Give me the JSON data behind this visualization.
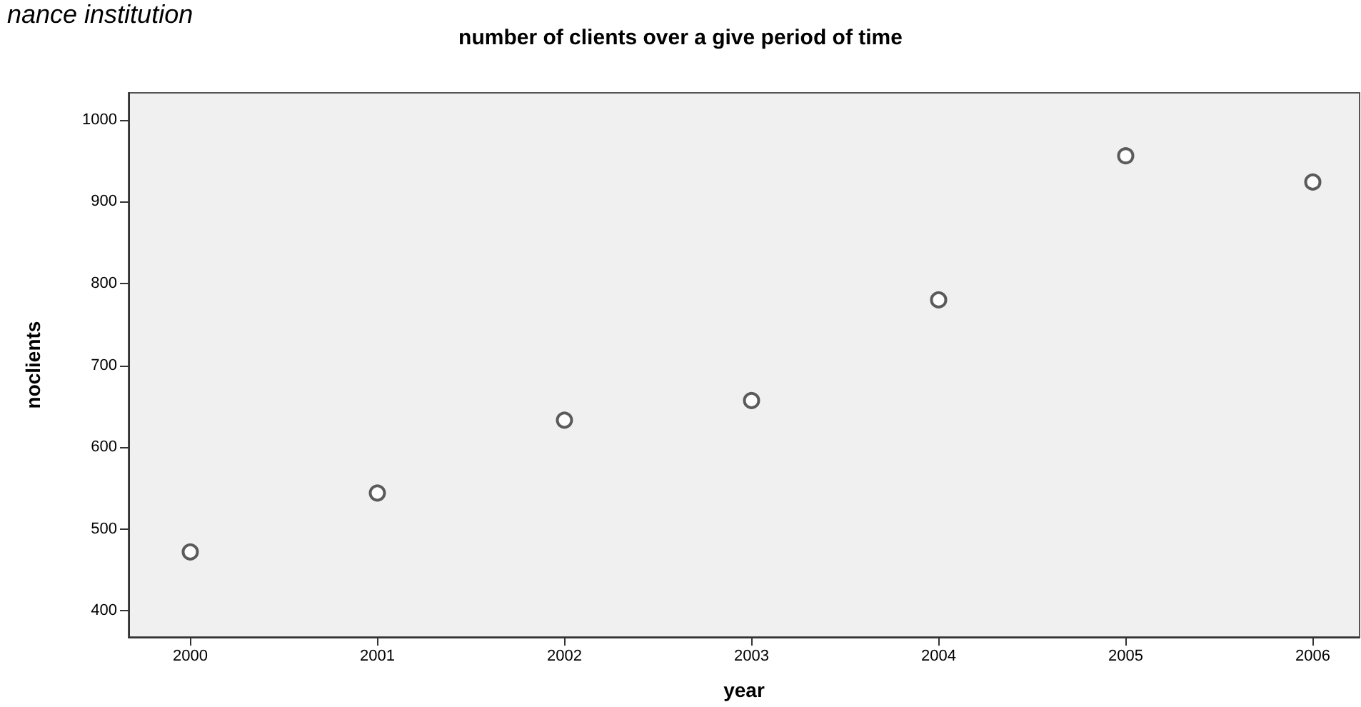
{
  "chart_data": {
    "type": "scatter",
    "title": "number of clients over a give period of time",
    "xlabel": "year",
    "ylabel": "noclients",
    "annotations": [
      "nance institution"
    ],
    "x": [
      2000,
      2001,
      2002,
      2003,
      2004,
      2005,
      2006
    ],
    "series": [
      {
        "color": "#333333",
        "values": [
          472,
          544,
          633,
          657,
          780,
          956,
          924
        ]
      }
    ],
    "xlim": [
      1999.67,
      2006.25
    ],
    "xticks": [
      2000,
      2001,
      2002,
      2003,
      2004,
      2005,
      2006
    ],
    "ylim": [
      368,
      1033
    ],
    "yticks": [
      400,
      500,
      600,
      700,
      800,
      900,
      1000
    ],
    "marker": "circle",
    "grid": false
  }
}
